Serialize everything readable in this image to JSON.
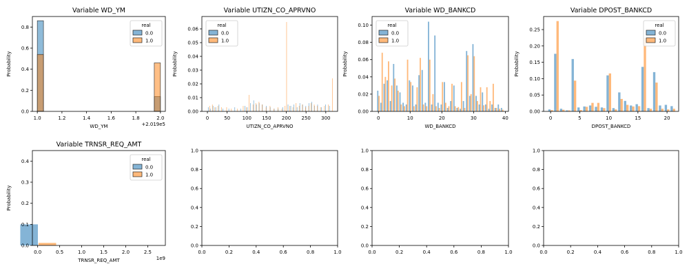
{
  "legend_title": "real",
  "legend_labels": [
    "0.0",
    "1.0"
  ],
  "colors": {
    "real_0": "#1f77b4",
    "real_1": "#ff7f0e",
    "overlap": "#5f7576"
  },
  "chart_data": [
    {
      "type": "bar",
      "title": "Variable WD_YM",
      "xlabel": "WD_YM",
      "ylabel": "Probability",
      "offset_label": "+2.019e5",
      "xlim": [
        0.96,
        2.04
      ],
      "ylim": [
        0,
        0.9
      ],
      "xticks": [
        1.0,
        1.2,
        1.4,
        1.6,
        1.8,
        2.0
      ],
      "xtick_labels": [
        "1.0",
        "1.2",
        "1.4",
        "1.6",
        "1.8",
        "2.0"
      ],
      "yticks": [
        0,
        0.2,
        0.4,
        0.6,
        0.8
      ],
      "ytick_labels": [
        "0.0",
        "0.2",
        "0.4",
        "0.6",
        "0.8"
      ],
      "legend": "top-right",
      "series": [
        {
          "name": "0.0",
          "bins": [
            [
              1.0,
              1.05,
              0.86
            ],
            [
              1.95,
              2.0,
              0.14
            ]
          ]
        },
        {
          "name": "1.0",
          "bins": [
            [
              1.0,
              1.05,
              0.54
            ],
            [
              1.95,
              2.0,
              0.46
            ]
          ]
        }
      ]
    },
    {
      "type": "bar",
      "title": "Variable UTIZN_CO_APRVNO",
      "xlabel": "UTIZN_CO_APRVNO",
      "ylabel": "Probability",
      "xlim": [
        -14,
        330
      ],
      "ylim": [
        0,
        0.069
      ],
      "xticks": [
        0,
        50,
        100,
        150,
        200,
        250,
        300
      ],
      "xtick_labels": [
        "0",
        "50",
        "100",
        "150",
        "200",
        "250",
        "300"
      ],
      "yticks": [
        0,
        0.01,
        0.02,
        0.03,
        0.04,
        0.05,
        0.06
      ],
      "ytick_labels": [
        "0.00",
        "0.01",
        "0.02",
        "0.03",
        "0.04",
        "0.05",
        "0.06"
      ],
      "legend": "top-left",
      "series": [
        {
          "name": "0.0",
          "x": [
            3,
            8,
            15,
            22,
            30,
            40,
            55,
            70,
            85,
            96,
            102,
            110,
            118,
            125,
            132,
            140,
            150,
            160,
            170,
            180,
            192,
            205,
            212,
            220,
            228,
            235,
            242,
            250,
            258,
            265,
            272,
            280,
            290,
            300,
            310
          ],
          "values": [
            0.003,
            0.002,
            0.004,
            0.003,
            0.005,
            0.002,
            0.002,
            0.003,
            0.002,
            0.004,
            0.003,
            0.006,
            0.008,
            0.005,
            0.006,
            0.005,
            0.004,
            0.003,
            0.002,
            0.002,
            0.003,
            0.005,
            0.004,
            0.005,
            0.003,
            0.006,
            0.005,
            0.004,
            0.006,
            0.007,
            0.004,
            0.005,
            0.003,
            0.005,
            0.004
          ]
        },
        {
          "name": "1.0",
          "x": [
            5,
            12,
            18,
            26,
            35,
            48,
            60,
            75,
            90,
            98,
            105,
            115,
            122,
            130,
            138,
            148,
            158,
            168,
            178,
            188,
            196,
            200,
            208,
            216,
            224,
            232,
            240,
            248,
            256,
            262,
            270,
            278,
            286,
            296,
            306,
            316
          ],
          "values": [
            0.004,
            0.005,
            0.003,
            0.004,
            0.003,
            0.003,
            0.002,
            0.002,
            0.004,
            0.003,
            0.012,
            0.005,
            0.006,
            0.007,
            0.005,
            0.003,
            0.004,
            0.002,
            0.003,
            0.002,
            0.004,
            0.065,
            0.004,
            0.003,
            0.006,
            0.004,
            0.005,
            0.003,
            0.004,
            0.006,
            0.005,
            0.004,
            0.003,
            0.004,
            0.005,
            0.024
          ]
        }
      ]
    },
    {
      "type": "bar",
      "title": "Variable WD_BANKCD",
      "xlabel": "WD_BANKCD",
      "ylabel": "Probability",
      "xlim": [
        -2,
        41
      ],
      "ylim": [
        0,
        0.11
      ],
      "xticks": [
        0,
        10,
        20,
        30,
        40
      ],
      "xtick_labels": [
        "0",
        "10",
        "20",
        "30",
        "40"
      ],
      "yticks": [
        0,
        0.02,
        0.04,
        0.06,
        0.08,
        0.1
      ],
      "ytick_labels": [
        "0.00",
        "0.02",
        "0.04",
        "0.06",
        "0.08",
        "0.10"
      ],
      "legend": "top-left",
      "series": [
        {
          "name": "0.0",
          "x": [
            0,
            1,
            2,
            3,
            4,
            5,
            6,
            7,
            8,
            9,
            10,
            11,
            12,
            13,
            14,
            15,
            16,
            17,
            18,
            19,
            20,
            21,
            22,
            23,
            24,
            25,
            26,
            27,
            28,
            29,
            30,
            31,
            32,
            33,
            34,
            35,
            36,
            37,
            38,
            39
          ],
          "values": [
            0.024,
            0.01,
            0.032,
            0.036,
            0.012,
            0.055,
            0.03,
            0.022,
            0.01,
            0.008,
            0.036,
            0.03,
            0.008,
            0.042,
            0.048,
            0.01,
            0.104,
            0.008,
            0.088,
            0.01,
            0.008,
            0.034,
            0.004,
            0.012,
            0.03,
            0.004,
            0.003,
            0.012,
            0.07,
            0.018,
            0.078,
            0.018,
            0.008,
            0.022,
            0.008,
            0.003,
            0.008,
            0.004,
            0.008,
            0.004
          ]
        },
        {
          "name": "1.0",
          "x": [
            0,
            1,
            2,
            3,
            4,
            5,
            6,
            7,
            8,
            9,
            10,
            11,
            12,
            13,
            14,
            15,
            16,
            17,
            18,
            19,
            20,
            21,
            22,
            23,
            24,
            25,
            26,
            27,
            28,
            29,
            30,
            31,
            32,
            33,
            34,
            35,
            36,
            37,
            38,
            39
          ],
          "values": [
            0.018,
            0.068,
            0.04,
            0.058,
            0.03,
            0.038,
            0.024,
            0.008,
            0.006,
            0.06,
            0.034,
            0.006,
            0.028,
            0.062,
            0.008,
            0.006,
            0.06,
            0.02,
            0.006,
            0.004,
            0.034,
            0.01,
            0.006,
            0.032,
            0.006,
            0.005,
            0.034,
            0.004,
            0.065,
            0.02,
            0.064,
            0.012,
            0.028,
            0.007,
            0.028,
            0.012,
            0.032,
            0.004,
            0.003,
            0.002
          ]
        }
      ]
    },
    {
      "type": "bar",
      "title": "Variable DPOST_BANKCD",
      "xlabel": "DPOST_BANKCD",
      "ylabel": "Probability",
      "xlim": [
        -1.2,
        22
      ],
      "ylim": [
        0,
        0.29
      ],
      "xticks": [
        0,
        5,
        10,
        15,
        20
      ],
      "xtick_labels": [
        "0",
        "5",
        "10",
        "15",
        "20"
      ],
      "yticks": [
        0,
        0.05,
        0.1,
        0.15,
        0.2,
        0.25
      ],
      "ytick_labels": [
        "0.00",
        "0.05",
        "0.10",
        "0.15",
        "0.20",
        "0.25"
      ],
      "legend": "top-right",
      "series": [
        {
          "name": "0.0",
          "x": [
            0,
            1,
            2,
            3,
            4,
            5,
            6,
            7,
            8,
            9,
            10,
            11,
            12,
            13,
            14,
            15,
            16,
            17,
            18,
            19,
            20,
            21
          ],
          "values": [
            0.006,
            0.176,
            0.008,
            0.003,
            0.16,
            0.012,
            0.015,
            0.018,
            0.014,
            0.012,
            0.11,
            0.01,
            0.058,
            0.032,
            0.018,
            0.022,
            0.136,
            0.01,
            0.12,
            0.018,
            0.02,
            0.016
          ]
        },
        {
          "name": "1.0",
          "x": [
            0,
            1,
            2,
            3,
            4,
            5,
            6,
            7,
            8,
            9,
            10,
            11,
            12,
            13,
            14,
            15,
            16,
            17,
            18,
            19,
            20,
            21
          ],
          "values": [
            0.004,
            0.276,
            0.005,
            0.003,
            0.094,
            0.004,
            0.014,
            0.026,
            0.026,
            0.01,
            0.116,
            0.006,
            0.038,
            0.02,
            0.015,
            0.016,
            0.224,
            0.008,
            0.088,
            0.008,
            0.006,
            0.008
          ]
        }
      ]
    },
    {
      "type": "bar",
      "title": "Variable TRNSR_REQ_AMT",
      "xlabel": "TRNSR_REQ_AMT",
      "ylabel": "Probability",
      "offset_label": "1e9",
      "xlim": [
        -0.12,
        2.9
      ],
      "ylim": [
        0,
        0.45
      ],
      "xticks": [
        0,
        0.5,
        1,
        1.5,
        2,
        2.5
      ],
      "xtick_labels": [
        "0.0",
        "0.5",
        "1.0",
        "1.5",
        "2.0",
        "2.5"
      ],
      "yticks": [
        0,
        0.1,
        0.2,
        0.3,
        0.4
      ],
      "ytick_labels": [
        "0.0",
        "0.1",
        "0.2",
        "0.3",
        "0.4"
      ],
      "legend": "top-right",
      "series": [
        {
          "name": "0.0",
          "x": [
            0.005
          ],
          "values": [
            0.1
          ]
        },
        {
          "name": "1.0",
          "x": [
            0.02
          ],
          "values": [
            0.012
          ]
        }
      ]
    },
    {
      "type": "table",
      "empty": true,
      "xlim": [
        0,
        1
      ],
      "ylim": [
        0,
        1
      ],
      "xticks": [
        0,
        0.2,
        0.4,
        0.6,
        0.8,
        1.0
      ],
      "xtick_labels": [
        "0.0",
        "0.2",
        "0.4",
        "0.6",
        "0.8",
        "1.0"
      ],
      "yticks": [
        0,
        0.2,
        0.4,
        0.6,
        0.8,
        1.0
      ],
      "ytick_labels": [
        "0.0",
        "0.2",
        "0.4",
        "0.6",
        "0.8",
        "1.0"
      ]
    },
    {
      "type": "table",
      "empty": true,
      "xlim": [
        0,
        1
      ],
      "ylim": [
        0,
        1
      ],
      "xticks": [
        0,
        0.2,
        0.4,
        0.6,
        0.8,
        1.0
      ],
      "xtick_labels": [
        "0.0",
        "0.2",
        "0.4",
        "0.6",
        "0.8",
        "1.0"
      ],
      "yticks": [
        0,
        0.2,
        0.4,
        0.6,
        0.8,
        1.0
      ],
      "ytick_labels": [
        "0.0",
        "0.2",
        "0.4",
        "0.6",
        "0.8",
        "1.0"
      ]
    },
    {
      "type": "table",
      "empty": true,
      "xlim": [
        0,
        1
      ],
      "ylim": [
        0,
        1
      ],
      "xticks": [
        0,
        0.2,
        0.4,
        0.6,
        0.8,
        1.0
      ],
      "xtick_labels": [
        "0.0",
        "0.2",
        "0.4",
        "0.6",
        "0.8",
        "1.0"
      ],
      "yticks": [
        0,
        0.2,
        0.4,
        0.6,
        0.8,
        1.0
      ],
      "ytick_labels": [
        "0.0",
        "0.2",
        "0.4",
        "0.6",
        "0.8",
        "1.0"
      ]
    }
  ]
}
